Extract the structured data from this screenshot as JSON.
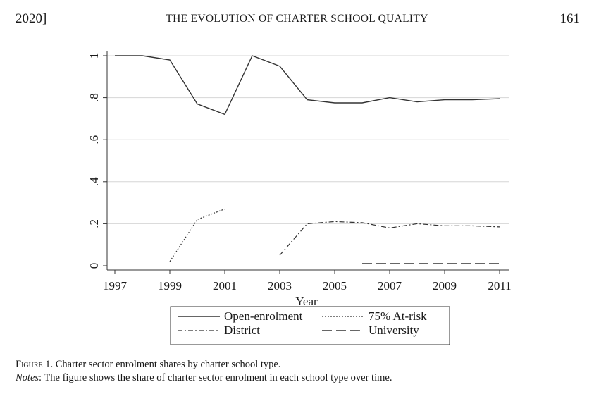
{
  "running_head": {
    "year": "2020]",
    "title": "THE EVOLUTION OF CHARTER SCHOOL QUALITY",
    "page_number": "161"
  },
  "caption": {
    "label": "Figure",
    "number": " 1. ",
    "text": "Charter sector enrolment shares by charter school type.",
    "notes_label": "Notes",
    "notes_text": ": The figure shows the share of charter sector enrolment in each school type over time."
  },
  "chart_data": {
    "type": "line",
    "title": "",
    "xlabel": "Year",
    "ylabel": "",
    "xlim": [
      1997,
      2011
    ],
    "ylim": [
      0,
      1
    ],
    "x_ticks": [
      1997,
      1999,
      2001,
      2003,
      2005,
      2007,
      2009,
      2011
    ],
    "x_tick_labels": [
      "1997",
      "1999",
      "2001",
      "2003",
      "2005",
      "2007",
      "2009",
      "2011"
    ],
    "y_ticks": [
      0,
      0.2,
      0.4,
      0.6,
      0.8,
      1
    ],
    "y_tick_labels": [
      "0",
      ".2",
      ".4",
      ".6",
      ".8",
      "1"
    ],
    "grid": true,
    "legend_position": "bottom-center",
    "series": [
      {
        "name": "Open-enrolment",
        "style": "solid",
        "points": [
          [
            1997,
            1.0
          ],
          [
            1998,
            1.0
          ],
          [
            1999,
            0.98
          ],
          [
            2000,
            0.77
          ],
          [
            2001,
            0.72
          ],
          [
            2002,
            1.0
          ],
          [
            2003,
            0.95
          ],
          [
            2004,
            0.79
          ],
          [
            2005,
            0.775
          ],
          [
            2006,
            0.775
          ],
          [
            2007,
            0.8
          ],
          [
            2008,
            0.78
          ],
          [
            2009,
            0.79
          ],
          [
            2010,
            0.79
          ],
          [
            2011,
            0.795
          ]
        ]
      },
      {
        "name": "75% At-risk",
        "style": "dotted",
        "points": [
          [
            1999,
            0.02
          ],
          [
            2000,
            0.22
          ],
          [
            2001,
            0.27
          ]
        ]
      },
      {
        "name": "District",
        "style": "dashdot",
        "points": [
          [
            2003,
            0.05
          ],
          [
            2004,
            0.2
          ],
          [
            2005,
            0.21
          ],
          [
            2006,
            0.205
          ],
          [
            2007,
            0.18
          ],
          [
            2008,
            0.2
          ],
          [
            2009,
            0.19
          ],
          [
            2010,
            0.19
          ],
          [
            2011,
            0.185
          ]
        ]
      },
      {
        "name": "University",
        "style": "longdash",
        "points": [
          [
            2006,
            0.01
          ],
          [
            2007,
            0.01
          ],
          [
            2008,
            0.01
          ],
          [
            2009,
            0.01
          ],
          [
            2010,
            0.01
          ],
          [
            2011,
            0.01
          ]
        ]
      }
    ]
  }
}
